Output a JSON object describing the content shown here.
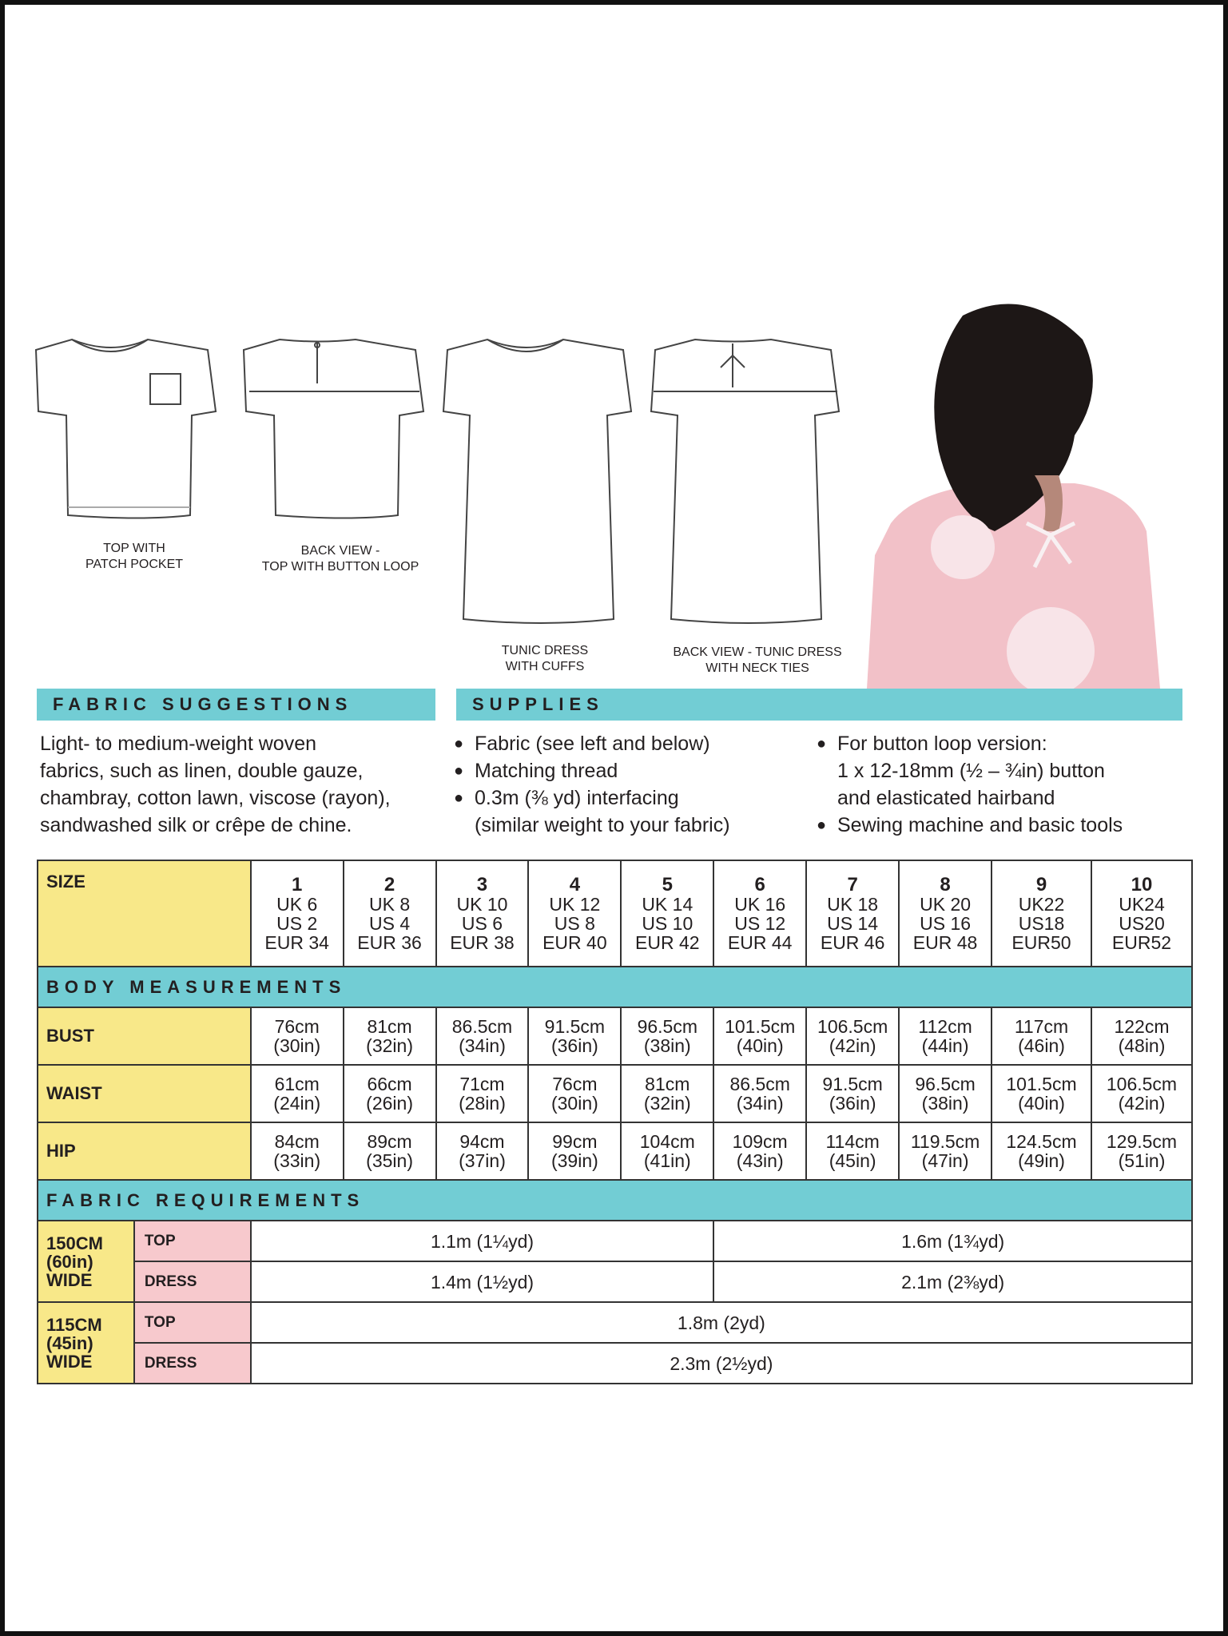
{
  "flats": [
    {
      "caption": [
        "Top with",
        "patch pocket"
      ]
    },
    {
      "caption": [
        "Back view -",
        "top with button loop"
      ]
    },
    {
      "caption": [
        "Tunic dress",
        "with cuffs"
      ]
    },
    {
      "caption": [
        "Back view - tunic dress",
        "with neck ties"
      ]
    }
  ],
  "fabric_suggestions": {
    "title": "FABRIC SUGGESTIONS",
    "lines": [
      "Light- to medium-weight woven",
      "fabrics, such as linen, double gauze,",
      "chambray, cotton lawn, viscose (rayon),",
      "sandwashed silk or crêpe de chine."
    ]
  },
  "supplies": {
    "title": "SUPPLIES",
    "col1": [
      {
        "bullet": true,
        "text": "Fabric (see left and below)"
      },
      {
        "bullet": true,
        "text": "Matching thread"
      },
      {
        "bullet": true,
        "text": "0.3m (⅜ yd) interfacing"
      },
      {
        "bullet": false,
        "text": "(similar weight to your fabric)"
      }
    ],
    "col2": [
      {
        "bullet": true,
        "text": "For button loop version:"
      },
      {
        "bullet": false,
        "text": "1 x 12-18mm (½ – ¾in) button"
      },
      {
        "bullet": false,
        "text": "and elasticated hairband"
      },
      {
        "bullet": true,
        "text": "Sewing machine and basic tools"
      }
    ]
  },
  "colors": {
    "teal": "#72cdd4",
    "yellow": "#f8e889",
    "pink": "#f7c9cd"
  },
  "size_table": {
    "size_label": "SIZE",
    "sizes": [
      {
        "num": "1",
        "uk": "UK 6",
        "us": "US 2",
        "eur": "EUR 34"
      },
      {
        "num": "2",
        "uk": "UK 8",
        "us": "US 4",
        "eur": "EUR 36"
      },
      {
        "num": "3",
        "uk": "UK 10",
        "us": "US 6",
        "eur": "EUR 38"
      },
      {
        "num": "4",
        "uk": "UK 12",
        "us": "US 8",
        "eur": "EUR 40"
      },
      {
        "num": "5",
        "uk": "UK 14",
        "us": "US 10",
        "eur": "EUR 42"
      },
      {
        "num": "6",
        "uk": "UK 16",
        "us": "US 12",
        "eur": "EUR 44"
      },
      {
        "num": "7",
        "uk": "UK 18",
        "us": "US 14",
        "eur": "EUR 46"
      },
      {
        "num": "8",
        "uk": "UK 20",
        "us": "US 16",
        "eur": "EUR 48"
      },
      {
        "num": "9",
        "uk": "UK22",
        "us": "US18",
        "eur": "EUR50"
      },
      {
        "num": "10",
        "uk": "UK24",
        "us": "US20",
        "eur": "EUR52"
      }
    ],
    "body_title": "BODY MEASUREMENTS",
    "body_rows": [
      {
        "label": "BUST",
        "values": [
          [
            "76cm",
            "(30in)"
          ],
          [
            "81cm",
            "(32in)"
          ],
          [
            "86.5cm",
            "(34in)"
          ],
          [
            "91.5cm",
            "(36in)"
          ],
          [
            "96.5cm",
            "(38in)"
          ],
          [
            "101.5cm",
            "(40in)"
          ],
          [
            "106.5cm",
            "(42in)"
          ],
          [
            "112cm",
            "(44in)"
          ],
          [
            "117cm",
            "(46in)"
          ],
          [
            "122cm",
            "(48in)"
          ]
        ]
      },
      {
        "label": "WAIST",
        "values": [
          [
            "61cm",
            "(24in)"
          ],
          [
            "66cm",
            "(26in)"
          ],
          [
            "71cm",
            "(28in)"
          ],
          [
            "76cm",
            "(30in)"
          ],
          [
            "81cm",
            "(32in)"
          ],
          [
            "86.5cm",
            "(34in)"
          ],
          [
            "91.5cm",
            "(36in)"
          ],
          [
            "96.5cm",
            "(38in)"
          ],
          [
            "101.5cm",
            "(40in)"
          ],
          [
            "106.5cm",
            "(42in)"
          ]
        ]
      },
      {
        "label": "HIP",
        "values": [
          [
            "84cm",
            "(33in)"
          ],
          [
            "89cm",
            "(35in)"
          ],
          [
            "94cm",
            "(37in)"
          ],
          [
            "99cm",
            "(39in)"
          ],
          [
            "104cm",
            "(41in)"
          ],
          [
            "109cm",
            "(43in)"
          ],
          [
            "114cm",
            "(45in)"
          ],
          [
            "119.5cm",
            "(47in)"
          ],
          [
            "124.5cm",
            "(49in)"
          ],
          [
            "129.5cm",
            "(51in)"
          ]
        ]
      }
    ],
    "fabric_title": "FABRIC REQUIREMENTS",
    "fabric_groups": [
      {
        "width": [
          "150CM",
          "(60in)",
          "WIDE"
        ],
        "rows": [
          {
            "label": "TOP",
            "values": [
              "1.1m (1¼yd)",
              "1.6m (1¾yd)"
            ]
          },
          {
            "label": "DRESS",
            "values": [
              "1.4m (1½yd)",
              "2.1m (2⅜yd)"
            ]
          }
        ]
      },
      {
        "width": [
          "115CM",
          "(45in)",
          "WIDE"
        ],
        "rows": [
          {
            "label": "TOP",
            "values": [
              "1.8m (2yd)"
            ]
          },
          {
            "label": "DRESS",
            "values": [
              "2.3m (2½yd)"
            ]
          }
        ]
      }
    ]
  }
}
